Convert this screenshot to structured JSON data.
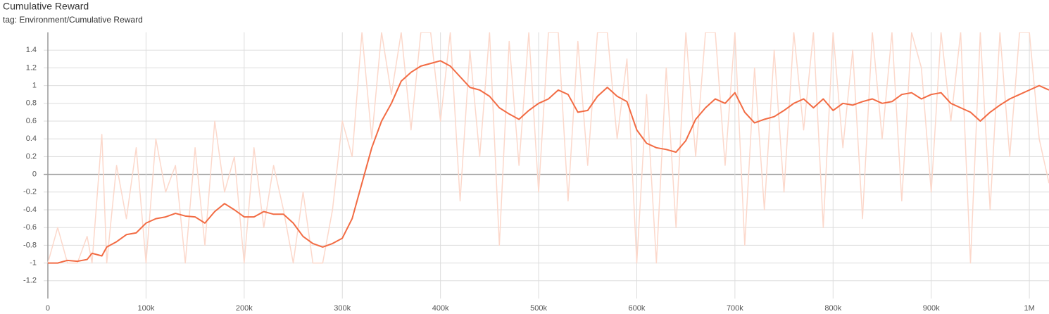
{
  "chart_data": {
    "type": "line",
    "title": "Cumulative Reward",
    "subtitle": "tag: Environment/Cumulative Reward",
    "x": [
      0,
      10000,
      20000,
      30000,
      40000,
      45000,
      55000,
      60000,
      70000,
      80000,
      90000,
      100000,
      110000,
      120000,
      130000,
      140000,
      150000,
      160000,
      170000,
      180000,
      190000,
      200000,
      210000,
      220000,
      230000,
      240000,
      250000,
      260000,
      270000,
      280000,
      290000,
      300000,
      310000,
      320000,
      330000,
      340000,
      350000,
      360000,
      370000,
      380000,
      390000,
      400000,
      410000,
      420000,
      430000,
      440000,
      450000,
      460000,
      470000,
      480000,
      490000,
      500000,
      510000,
      520000,
      530000,
      540000,
      550000,
      560000,
      570000,
      580000,
      590000,
      600000,
      610000,
      620000,
      630000,
      640000,
      650000,
      660000,
      670000,
      680000,
      690000,
      700000,
      710000,
      720000,
      730000,
      740000,
      750000,
      760000,
      770000,
      780000,
      790000,
      800000,
      810000,
      820000,
      830000,
      840000,
      850000,
      860000,
      870000,
      880000,
      890000,
      900000,
      910000,
      920000,
      930000,
      940000,
      950000,
      960000,
      970000,
      980000,
      990000,
      1000000,
      1010000,
      1020000
    ],
    "series": [
      {
        "color": "#fcd8cb",
        "values": [
          -1,
          -0.6,
          -1,
          -1,
          -0.7,
          -1,
          0.45,
          -1,
          0.1,
          -0.5,
          0.3,
          -1,
          0.4,
          -0.2,
          0.1,
          -1,
          0.3,
          -0.8,
          0.6,
          -0.2,
          0.2,
          -1,
          0.3,
          -0.6,
          0.1,
          -0.4,
          -1,
          -0.2,
          -1,
          -1,
          -0.4,
          0.6,
          0.2,
          1.6,
          0.4,
          1.6,
          0.9,
          1.6,
          0.5,
          1.6,
          1.6,
          0.6,
          1.6,
          -0.3,
          1.4,
          0.2,
          1.6,
          -0.8,
          1.5,
          0.1,
          1.6,
          -0.2,
          1.6,
          1.6,
          -0.3,
          1.5,
          0.1,
          1.6,
          1.6,
          0.4,
          1.3,
          -1,
          0.9,
          -1,
          1.2,
          -0.6,
          1.6,
          0.2,
          1.6,
          1.6,
          0.1,
          1.6,
          -0.8,
          1.2,
          -0.4,
          1.4,
          -0.2,
          1.6,
          0.5,
          1.6,
          -0.6,
          1.6,
          0.3,
          1.4,
          -0.5,
          1.6,
          0.4,
          1.6,
          -0.3,
          1.6,
          1.2,
          -0.2,
          1.6,
          0.6,
          1.6,
          -1,
          1.6,
          -0.4,
          1.6,
          0.2,
          1.6,
          1.6,
          0.4,
          -0.1
        ]
      },
      {
        "color": "#f26b43",
        "values": [
          -1,
          -1,
          -0.97,
          -0.98,
          -0.96,
          -0.89,
          -0.92,
          -0.82,
          -0.76,
          -0.68,
          -0.66,
          -0.55,
          -0.5,
          -0.48,
          -0.44,
          -0.47,
          -0.48,
          -0.55,
          -0.42,
          -0.33,
          -0.4,
          -0.48,
          -0.48,
          -0.42,
          -0.45,
          -0.45,
          -0.55,
          -0.7,
          -0.78,
          -0.82,
          -0.78,
          -0.72,
          -0.5,
          -0.1,
          0.3,
          0.6,
          0.8,
          1.05,
          1.15,
          1.22,
          1.25,
          1.28,
          1.22,
          1.1,
          0.98,
          0.95,
          0.88,
          0.75,
          0.68,
          0.62,
          0.72,
          0.8,
          0.85,
          0.95,
          0.9,
          0.7,
          0.72,
          0.88,
          0.98,
          0.88,
          0.82,
          0.5,
          0.35,
          0.3,
          0.28,
          0.25,
          0.38,
          0.62,
          0.75,
          0.85,
          0.8,
          0.92,
          0.7,
          0.58,
          0.62,
          0.65,
          0.72,
          0.8,
          0.85,
          0.75,
          0.85,
          0.72,
          0.8,
          0.78,
          0.82,
          0.85,
          0.8,
          0.82,
          0.9,
          0.92,
          0.85,
          0.9,
          0.92,
          0.8,
          0.75,
          0.7,
          0.6,
          0.7,
          0.78,
          0.85,
          0.9,
          0.95,
          1,
          0.95
        ]
      }
    ],
    "xlim": [
      -4300,
      1020000
    ],
    "ylim": [
      -1.4,
      1.6
    ],
    "xticks": [
      0,
      {
        "value": 100000,
        "label": "100k"
      },
      {
        "value": 200000,
        "label": "200k"
      },
      {
        "value": 300000,
        "label": "300k"
      },
      {
        "value": 400000,
        "label": "400k"
      },
      {
        "value": 500000,
        "label": "500k"
      },
      {
        "value": 600000,
        "label": "600k"
      },
      {
        "value": 700000,
        "label": "700k"
      },
      {
        "value": 800000,
        "label": "800k"
      },
      {
        "value": 900000,
        "label": "900k"
      },
      {
        "value": 1000000,
        "label": "1M"
      }
    ],
    "yticks": [
      -1.2,
      -1,
      -0.8,
      -0.6,
      -0.4,
      -0.2,
      0,
      0.2,
      0.4,
      0.6,
      0.8,
      1,
      1.2,
      1.4
    ],
    "grid": true
  }
}
